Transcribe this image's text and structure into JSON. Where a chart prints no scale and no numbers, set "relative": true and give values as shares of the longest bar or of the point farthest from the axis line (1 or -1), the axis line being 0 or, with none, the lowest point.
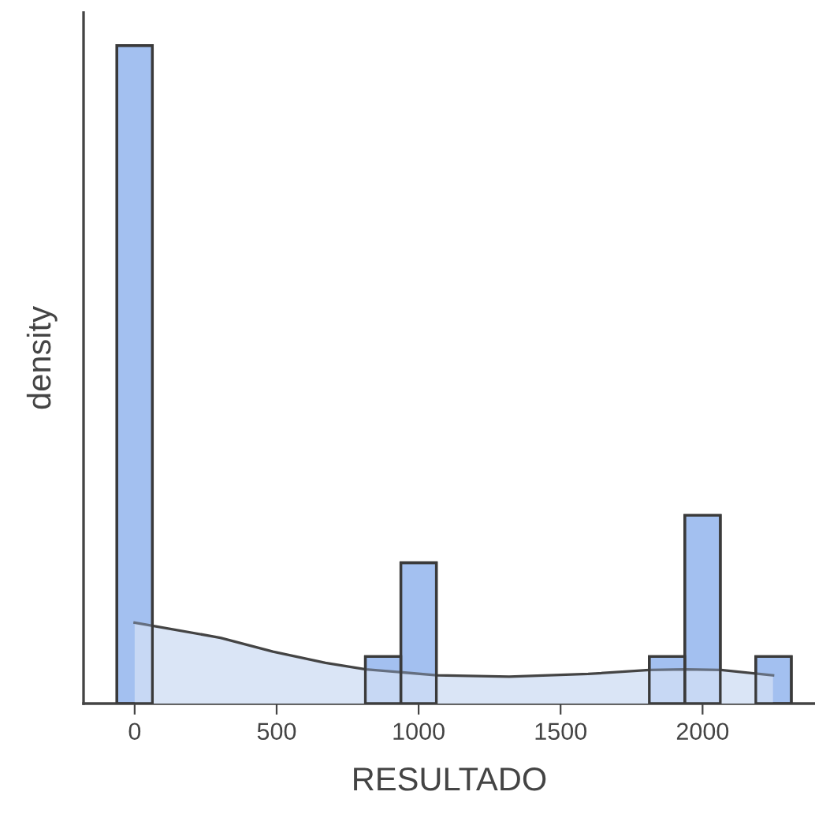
{
  "chart_data": {
    "type": "histogram",
    "relative": true,
    "xlabel": "RESULTADO",
    "ylabel": "density",
    "bins": [
      -62.5,
      62.5,
      187.5,
      312.5,
      437.5,
      562.5,
      687.5,
      812.5,
      937.5,
      1062.5,
      1187.5,
      1312.5,
      1437.5,
      1562.5,
      1687.5,
      1812.5,
      1937.5,
      2062.5,
      2187.5,
      2312.5
    ],
    "values": [
      1,
      0,
      0,
      0,
      0,
      0,
      0,
      0.0714,
      0.214,
      0,
      0,
      0,
      0,
      0,
      0,
      0.0714,
      0.286,
      0,
      0.0714
    ],
    "color": "#a3c1f0",
    "series": [
      {
        "type": "area",
        "color": "#dae5f6",
        "x": [
          0,
          302,
          487,
          672,
          814,
          1064,
          1319,
          1597,
          1813,
          1939,
          2065,
          2248
        ],
        "values": [
          0.123,
          0.1,
          0.079,
          0.062,
          0.052,
          0.043,
          0.041,
          0.045,
          0.051,
          0.052,
          0.051,
          0.043
        ]
      }
    ],
    "xlim": [
      -180,
      2396
    ],
    "xticks": [
      0,
      500,
      1000,
      1500,
      2000
    ],
    "tick_labels": "x",
    "grid": false,
    "legend": false
  }
}
